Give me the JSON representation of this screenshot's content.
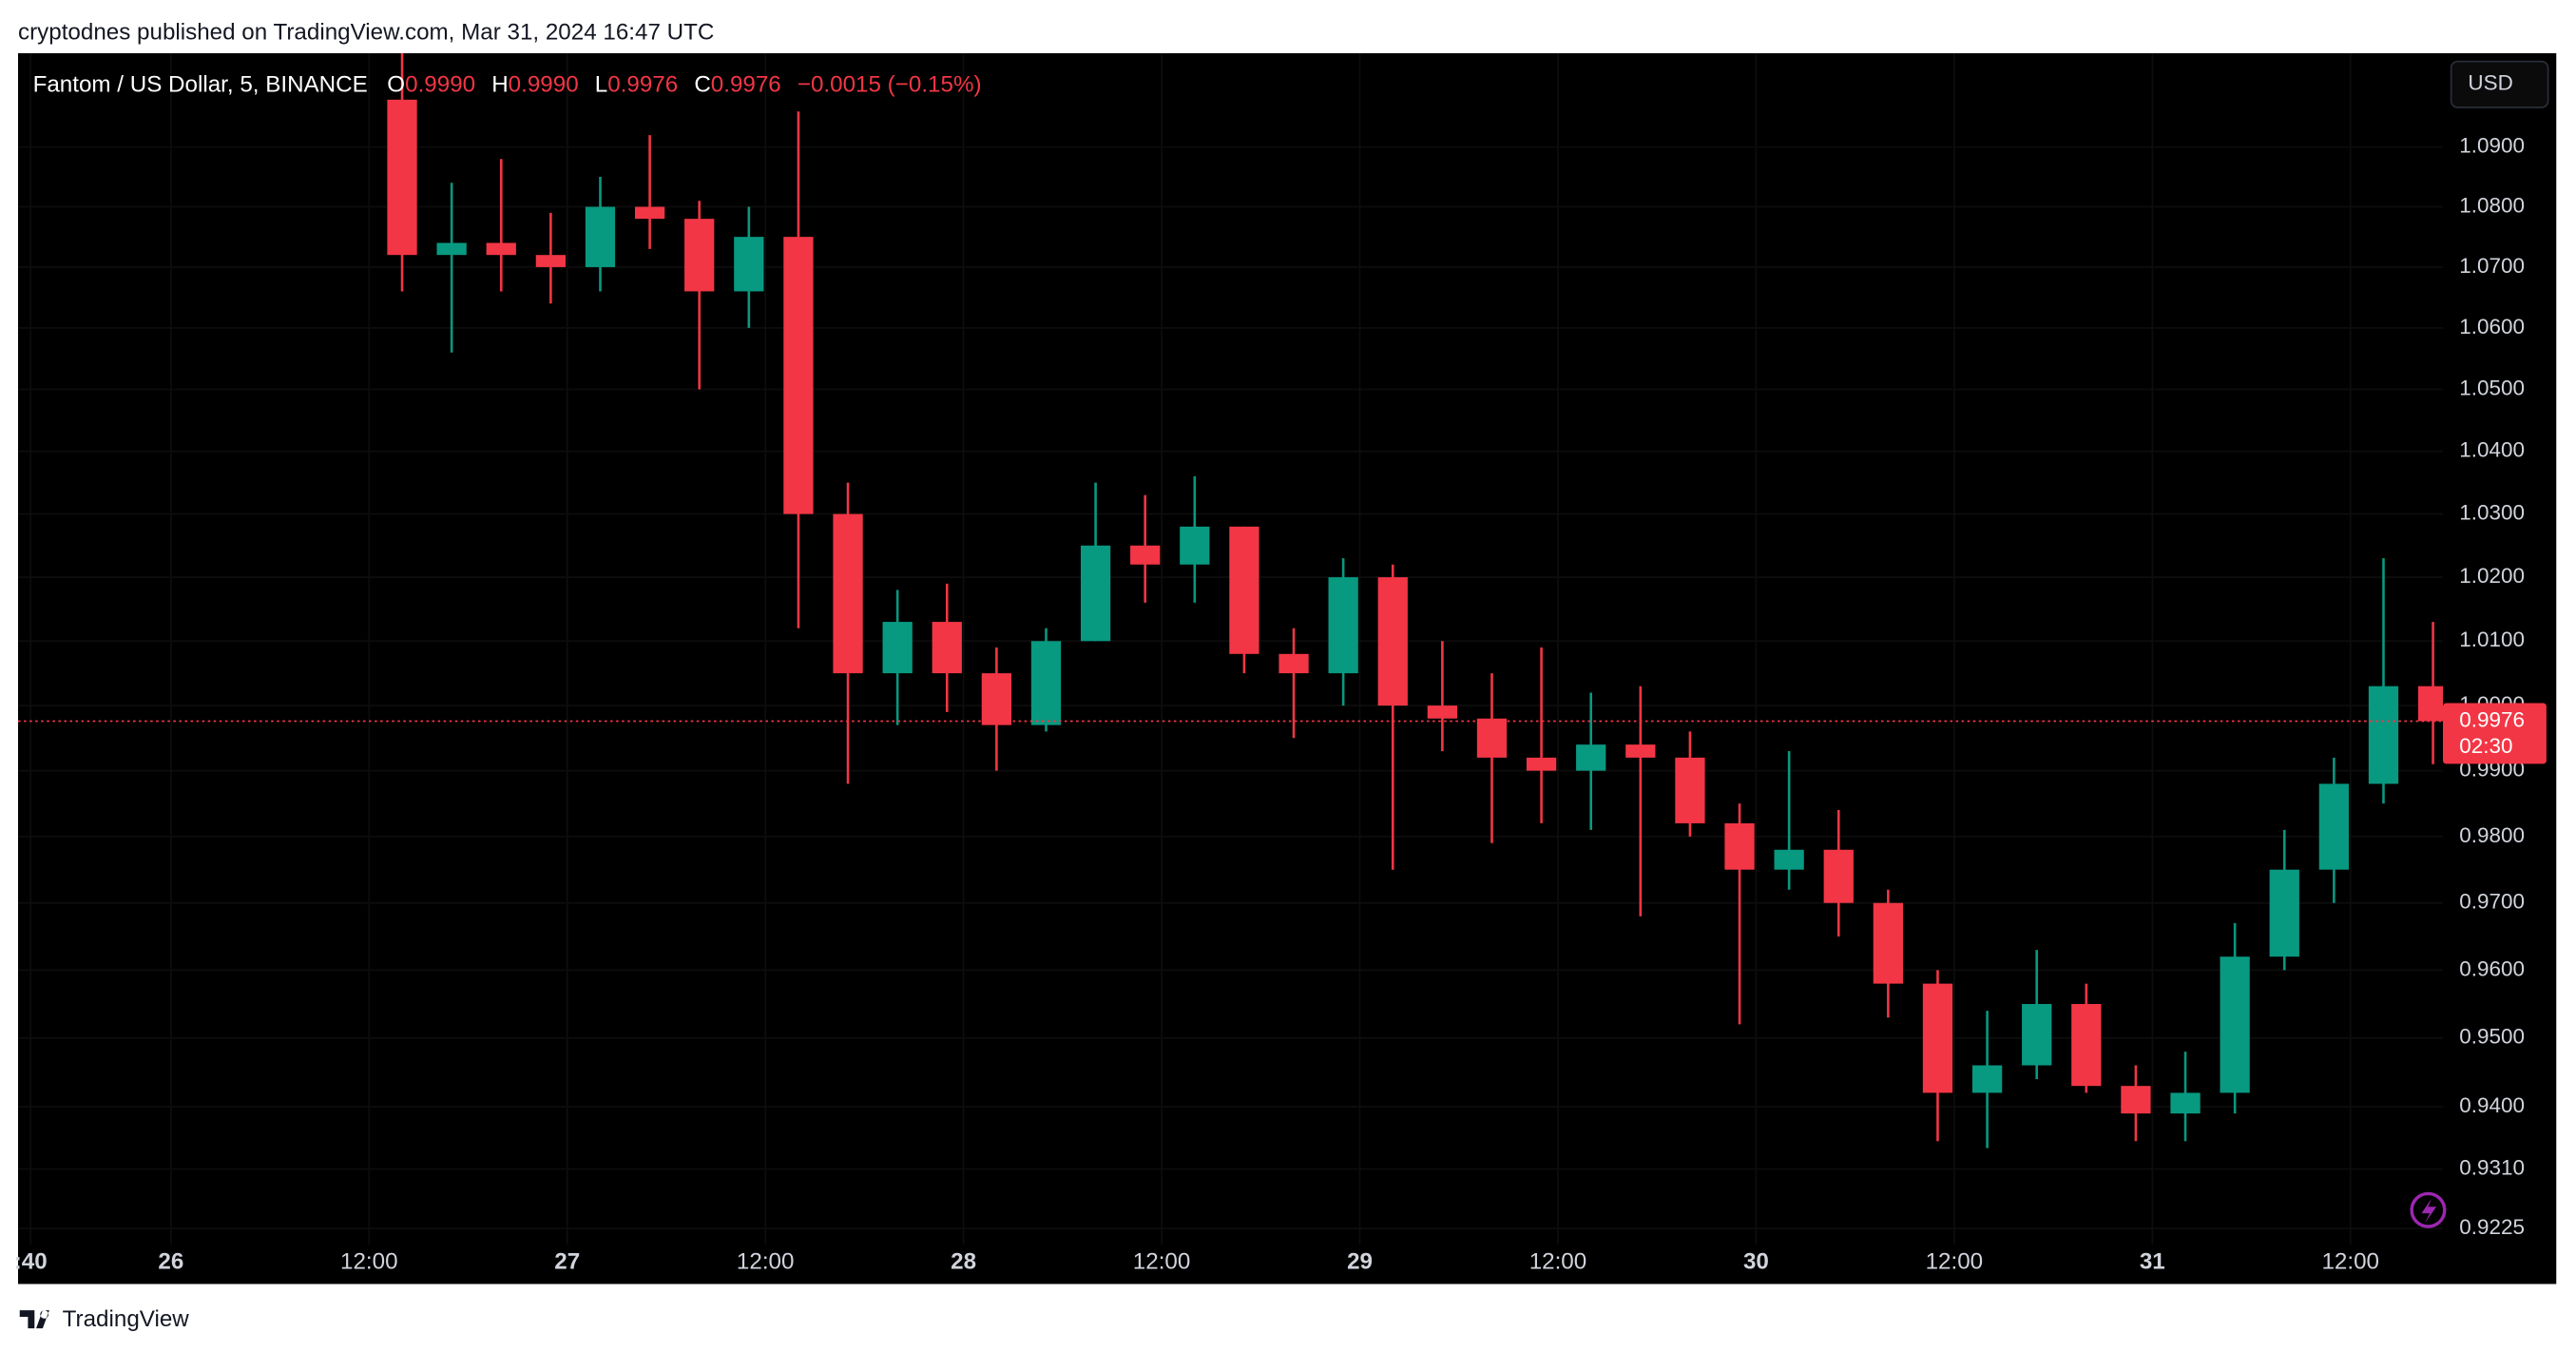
{
  "page_header": "cryptodnes published on TradingView.com, Mar 31, 2024 16:47 UTC",
  "footer_brand": "TradingView",
  "currency_button": "USD",
  "legend": {
    "symbol": "Fantom / US Dollar, 5, BINANCE",
    "open_label": "O",
    "open": "0.9990",
    "high_label": "H",
    "high": "0.9990",
    "low_label": "L",
    "low": "0.9976",
    "close_label": "C",
    "close": "0.9976",
    "change": "−0.0015 (−0.15%)"
  },
  "chart_data": {
    "type": "candlestick",
    "log": true,
    "up_color": "#089981",
    "down_color": "#f23645",
    "x": [
      14,
      17,
      20,
      23,
      26,
      29,
      32,
      35,
      38,
      41,
      44,
      47,
      50,
      53,
      56,
      59,
      62,
      65,
      68,
      71,
      74,
      77,
      80,
      83,
      86,
      89,
      92,
      95,
      98,
      101,
      104,
      107,
      110,
      113,
      116,
      119,
      122,
      125,
      128,
      131,
      134,
      137
    ],
    "open": [
      1.098,
      1.072,
      1.074,
      1.072,
      1.07,
      1.08,
      1.078,
      1.066,
      1.075,
      1.03,
      1.005,
      1.013,
      1.005,
      0.997,
      1.01,
      1.025,
      1.022,
      1.028,
      1.008,
      1.005,
      1.02,
      1.0,
      0.998,
      0.992,
      0.99,
      0.994,
      0.992,
      0.982,
      0.975,
      0.978,
      0.97,
      0.958,
      0.942,
      0.946,
      0.955,
      0.943,
      0.939,
      0.942,
      0.962,
      0.975,
      0.988,
      1.003
    ],
    "high": [
      1.106,
      1.084,
      1.088,
      1.079,
      1.085,
      1.092,
      1.081,
      1.08,
      1.096,
      1.035,
      1.018,
      1.019,
      1.009,
      1.012,
      1.035,
      1.033,
      1.036,
      1.028,
      1.012,
      1.023,
      1.022,
      1.01,
      1.005,
      1.009,
      1.002,
      1.003,
      0.996,
      0.985,
      0.993,
      0.984,
      0.972,
      0.96,
      0.954,
      0.963,
      0.958,
      0.946,
      0.948,
      0.967,
      0.981,
      0.992,
      1.023,
      1.013
    ],
    "low": [
      1.066,
      1.056,
      1.066,
      1.064,
      1.066,
      1.073,
      1.05,
      1.06,
      1.012,
      0.988,
      0.997,
      0.999,
      0.99,
      0.996,
      1.01,
      1.016,
      1.016,
      1.005,
      0.995,
      1.0,
      0.975,
      0.993,
      0.979,
      0.982,
      0.981,
      0.968,
      0.98,
      0.952,
      0.972,
      0.965,
      0.953,
      0.935,
      0.934,
      0.944,
      0.942,
      0.935,
      0.935,
      0.939,
      0.96,
      0.97,
      0.985,
      0.991
    ],
    "close": [
      1.072,
      1.074,
      1.072,
      1.07,
      1.08,
      1.078,
      1.066,
      1.075,
      1.03,
      1.005,
      1.013,
      1.005,
      0.997,
      1.01,
      1.025,
      1.022,
      1.028,
      1.008,
      1.005,
      1.02,
      1.0,
      0.998,
      0.992,
      0.99,
      0.994,
      0.992,
      0.982,
      0.975,
      0.978,
      0.97,
      0.958,
      0.942,
      0.946,
      0.955,
      0.943,
      0.939,
      0.942,
      0.962,
      0.975,
      0.988,
      1.003,
      0.9976
    ],
    "xlim": [
      -9.26,
      137.6
    ],
    "xticks": [
      {
        "value": -8.5,
        "label": ":40"
      },
      {
        "value": 0,
        "label": "26"
      },
      {
        "value": 12,
        "label": "12:00"
      },
      {
        "value": 24,
        "label": "27"
      },
      {
        "value": 36,
        "label": "12:00"
      },
      {
        "value": 48,
        "label": "28"
      },
      {
        "value": 60,
        "label": "12:00"
      },
      {
        "value": 72,
        "label": "29"
      },
      {
        "value": 84,
        "label": "12:00"
      },
      {
        "value": 96,
        "label": "30"
      },
      {
        "value": 108,
        "label": "12:00"
      },
      {
        "value": 120,
        "label": "31"
      },
      {
        "value": 132,
        "label": "12:00"
      }
    ],
    "ylim": [
      0.9202,
      1.1059
    ],
    "yticks": [
      {
        "value": 1.09,
        "label": "1.0900"
      },
      {
        "value": 1.08,
        "label": "1.0800"
      },
      {
        "value": 1.07,
        "label": "1.0700"
      },
      {
        "value": 1.06,
        "label": "1.0600"
      },
      {
        "value": 1.05,
        "label": "1.0500"
      },
      {
        "value": 1.04,
        "label": "1.0400"
      },
      {
        "value": 1.03,
        "label": "1.0300"
      },
      {
        "value": 1.02,
        "label": "1.0200"
      },
      {
        "value": 1.01,
        "label": "1.0100"
      },
      {
        "value": 1,
        "label": "1.0000"
      },
      {
        "value": 0.99,
        "label": "0.9900"
      },
      {
        "value": 0.98,
        "label": "0.9800"
      },
      {
        "value": 0.97,
        "label": "0.9700"
      },
      {
        "value": 0.96,
        "label": "0.9600"
      },
      {
        "value": 0.95,
        "label": "0.9500"
      },
      {
        "value": 0.94,
        "label": "0.9400"
      },
      {
        "value": 0.931,
        "label": "0.9310"
      },
      {
        "value": 0.9225,
        "label": "0.9225"
      }
    ],
    "last_price": {
      "value": 0.9976,
      "label": "0.9976"
    },
    "countdown": "02:30",
    "grid": true
  }
}
